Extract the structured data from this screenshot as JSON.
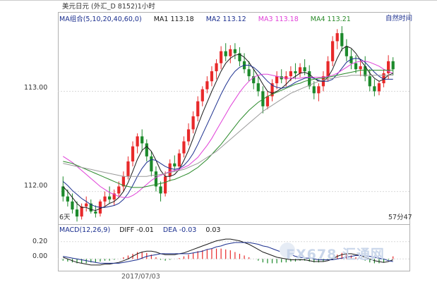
{
  "header": {
    "instrument": "美元日元 (外汇_D 8152)1小时",
    "mode_label": "自然时间"
  },
  "ma_legend": {
    "group": "MA组合(5,10,20,40,60,0)",
    "items": [
      {
        "label": "MA1 113.18",
        "color": "#1a1a1a"
      },
      {
        "label": "MA2 113.12",
        "color": "#1b2f8f"
      },
      {
        "label": "MA3 113.18",
        "color": "#e040d8"
      },
      {
        "label": "MA4 113.21",
        "color": "#2a8a2a"
      }
    ]
  },
  "price_axis": {
    "ticks": [
      "113.00",
      "112.00"
    ]
  },
  "time_labels": {
    "left": "6天",
    "right": "57分47"
  },
  "macd_legend": {
    "title": "MACD(12,26,9)",
    "diff": "DIFF -0.01",
    "dea": "DEA -0.03",
    "macd": "0.03"
  },
  "macd_axis": {
    "ticks": [
      "0.20",
      "0.00"
    ]
  },
  "date_label": "2017/07/03",
  "watermark": "FX678 汇通网",
  "colors": {
    "up": "#e8292a",
    "down": "#1c8a2b",
    "axis": "#b0b0b0",
    "grid": "#d9d9d9"
  },
  "chart_data": [
    {
      "type": "candlestick",
      "title": "美元日元 (外汇_D 8152)1小时",
      "ylim": [
        111.8,
        113.7
      ],
      "yticks": [
        113.0,
        112.0
      ],
      "ohlc": [
        [
          112.05,
          112.15,
          111.9,
          111.95
        ],
        [
          111.95,
          112.02,
          111.85,
          111.9
        ],
        [
          111.9,
          111.98,
          111.78,
          111.82
        ],
        [
          111.82,
          111.9,
          111.7,
          111.75
        ],
        [
          111.75,
          111.88,
          111.72,
          111.85
        ],
        [
          111.85,
          111.95,
          111.8,
          111.88
        ],
        [
          111.88,
          111.92,
          111.78,
          111.8
        ],
        [
          111.8,
          111.86,
          111.74,
          111.78
        ],
        [
          111.78,
          111.92,
          111.75,
          111.9
        ],
        [
          111.9,
          112.0,
          111.85,
          111.95
        ],
        [
          111.95,
          112.05,
          111.88,
          111.92
        ],
        [
          111.92,
          112.02,
          111.86,
          111.98
        ],
        [
          111.98,
          112.1,
          111.94,
          112.05
        ],
        [
          112.05,
          112.2,
          112.0,
          112.15
        ],
        [
          112.15,
          112.35,
          112.12,
          112.3
        ],
        [
          112.3,
          112.5,
          112.25,
          112.45
        ],
        [
          112.45,
          112.58,
          112.38,
          112.55
        ],
        [
          112.55,
          112.62,
          112.4,
          112.48
        ],
        [
          112.48,
          112.52,
          112.3,
          112.35
        ],
        [
          112.35,
          112.4,
          112.15,
          112.2
        ],
        [
          112.2,
          112.25,
          112.0,
          112.05
        ],
        [
          112.05,
          112.1,
          111.9,
          111.98
        ],
        [
          111.98,
          112.2,
          111.95,
          112.15
        ],
        [
          112.15,
          112.32,
          112.1,
          112.28
        ],
        [
          112.28,
          112.36,
          112.2,
          112.25
        ],
        [
          112.25,
          112.42,
          112.22,
          112.38
        ],
        [
          112.38,
          112.55,
          112.34,
          112.5
        ],
        [
          112.5,
          112.68,
          112.46,
          112.62
        ],
        [
          112.62,
          112.8,
          112.58,
          112.75
        ],
        [
          112.75,
          112.95,
          112.7,
          112.9
        ],
        [
          112.9,
          113.05,
          112.85,
          113.02
        ],
        [
          113.02,
          113.15,
          112.98,
          113.1
        ],
        [
          113.1,
          113.25,
          113.05,
          113.2
        ],
        [
          113.2,
          113.32,
          113.12,
          113.28
        ],
        [
          113.28,
          113.45,
          113.22,
          113.4
        ],
        [
          113.4,
          113.48,
          113.3,
          113.35
        ],
        [
          113.35,
          113.46,
          113.28,
          113.42
        ],
        [
          113.42,
          113.48,
          113.32,
          113.38
        ],
        [
          113.38,
          113.44,
          113.25,
          113.3
        ],
        [
          113.3,
          113.38,
          113.18,
          113.22
        ],
        [
          113.22,
          113.3,
          113.1,
          113.15
        ],
        [
          113.15,
          113.22,
          113.02,
          113.08
        ],
        [
          113.08,
          113.15,
          112.95,
          113.0
        ],
        [
          113.0,
          113.05,
          112.78,
          112.85
        ],
        [
          112.85,
          113.0,
          112.82,
          112.95
        ],
        [
          112.95,
          113.12,
          112.9,
          113.08
        ],
        [
          113.08,
          113.2,
          113.02,
          113.15
        ],
        [
          113.15,
          113.22,
          113.08,
          113.12
        ],
        [
          113.12,
          113.2,
          113.05,
          113.15
        ],
        [
          113.15,
          113.25,
          113.1,
          113.2
        ],
        [
          113.2,
          113.28,
          113.12,
          113.18
        ],
        [
          113.18,
          113.28,
          113.14,
          113.24
        ],
        [
          113.24,
          113.32,
          113.16,
          113.2
        ],
        [
          113.2,
          113.26,
          113.02,
          113.05
        ],
        [
          113.05,
          113.1,
          112.92,
          112.98
        ],
        [
          112.98,
          113.08,
          112.9,
          113.05
        ],
        [
          113.05,
          113.2,
          113.0,
          113.15
        ],
        [
          113.15,
          113.35,
          113.1,
          113.3
        ],
        [
          113.3,
          113.55,
          113.25,
          113.5
        ],
        [
          113.5,
          113.62,
          113.42,
          113.58
        ],
        [
          113.58,
          113.65,
          113.4,
          113.45
        ],
        [
          113.45,
          113.52,
          113.3,
          113.35
        ],
        [
          113.35,
          113.42,
          113.22,
          113.28
        ],
        [
          113.28,
          113.36,
          113.18,
          113.22
        ],
        [
          113.22,
          113.32,
          113.15,
          113.25
        ],
        [
          113.25,
          113.35,
          113.1,
          113.15
        ],
        [
          113.15,
          113.22,
          113.0,
          113.05
        ],
        [
          113.05,
          113.12,
          112.95,
          113.0
        ],
        [
          113.0,
          113.1,
          112.96,
          113.08
        ],
        [
          113.08,
          113.22,
          113.04,
          113.18
        ],
        [
          113.18,
          113.36,
          113.12,
          113.3
        ],
        [
          113.3,
          113.34,
          113.16,
          113.22
        ]
      ],
      "series": [
        {
          "name": "MA1",
          "color": "#1a1a1a",
          "values": [
            112.05,
            112.0,
            111.94,
            111.88,
            111.84,
            111.84,
            111.82,
            111.81,
            111.83,
            111.85,
            111.88,
            111.9,
            111.94,
            112.0,
            112.09,
            112.2,
            112.32,
            112.41,
            112.45,
            112.4,
            112.31,
            112.21,
            112.15,
            112.15,
            112.17,
            112.22,
            112.31,
            112.41,
            112.53,
            112.66,
            112.78,
            112.89,
            113.0,
            113.1,
            113.2,
            113.28,
            113.33,
            113.36,
            113.37,
            113.34,
            113.29,
            113.22,
            113.15,
            113.07,
            113.0,
            112.98,
            113.0,
            113.03,
            113.07,
            113.12,
            113.15,
            113.18,
            113.19,
            113.17,
            113.13,
            113.1,
            113.1,
            113.14,
            113.22,
            113.33,
            113.42,
            113.45,
            113.43,
            113.38,
            113.31,
            113.25,
            113.18,
            113.13,
            113.1,
            113.12,
            113.16,
            113.18
          ]
        },
        {
          "name": "MA2",
          "color": "#1b2f8f",
          "values": [
            112.1,
            112.06,
            112.01,
            111.97,
            111.93,
            111.9,
            111.87,
            111.85,
            111.84,
            111.84,
            111.85,
            111.86,
            111.88,
            111.92,
            111.98,
            112.06,
            112.15,
            112.23,
            112.29,
            112.32,
            112.31,
            112.28,
            112.25,
            112.23,
            112.22,
            112.23,
            112.26,
            112.31,
            112.38,
            112.47,
            112.57,
            112.67,
            112.77,
            112.87,
            112.97,
            113.06,
            113.14,
            113.2,
            113.24,
            113.26,
            113.26,
            113.24,
            113.2,
            113.15,
            113.1,
            113.06,
            113.04,
            113.03,
            113.04,
            113.06,
            113.09,
            113.11,
            113.13,
            113.14,
            113.13,
            113.11,
            113.1,
            113.1,
            113.12,
            113.17,
            113.23,
            113.29,
            113.32,
            113.33,
            113.32,
            113.29,
            113.24,
            113.19,
            113.15,
            113.12,
            113.12,
            113.12
          ]
        },
        {
          "name": "MA3",
          "color": "#e040d8",
          "values": [
            112.35,
            112.32,
            112.29,
            112.25,
            112.21,
            112.17,
            112.13,
            112.09,
            112.05,
            112.02,
            111.99,
            111.97,
            111.95,
            111.94,
            111.94,
            111.96,
            111.99,
            112.03,
            112.07,
            112.11,
            112.14,
            112.16,
            112.18,
            112.2,
            112.21,
            112.22,
            112.24,
            112.26,
            112.3,
            112.34,
            112.4,
            112.46,
            112.53,
            112.61,
            112.69,
            112.77,
            112.85,
            112.92,
            112.99,
            113.05,
            113.1,
            113.14,
            113.16,
            113.17,
            113.17,
            113.16,
            113.15,
            113.14,
            113.13,
            113.13,
            113.13,
            113.13,
            113.14,
            113.14,
            113.14,
            113.14,
            113.14,
            113.15,
            113.16,
            113.18,
            113.21,
            113.24,
            113.27,
            113.29,
            113.3,
            113.3,
            113.29,
            113.27,
            113.25,
            113.22,
            113.2,
            113.18
          ]
        },
        {
          "name": "MA4",
          "color": "#2a8a2a",
          "values": [
            112.3,
            112.29,
            112.28,
            112.26,
            112.24,
            112.22,
            112.2,
            112.18,
            112.16,
            112.14,
            112.12,
            112.1,
            112.08,
            112.06,
            112.05,
            112.04,
            112.04,
            112.04,
            112.05,
            112.06,
            112.07,
            112.08,
            112.09,
            112.11,
            112.12,
            112.14,
            112.16,
            112.18,
            112.21,
            112.24,
            112.28,
            112.32,
            112.37,
            112.42,
            112.47,
            112.53,
            112.59,
            112.65,
            112.71,
            112.76,
            112.81,
            112.85,
            112.89,
            112.92,
            112.95,
            112.97,
            112.99,
            113.01,
            113.03,
            113.05,
            113.07,
            113.08,
            113.1,
            113.11,
            113.12,
            113.13,
            113.13,
            113.14,
            113.15,
            113.16,
            113.17,
            113.18,
            113.19,
            113.2,
            113.21,
            113.21,
            113.21,
            113.21,
            113.21,
            113.21,
            113.21,
            113.21
          ]
        },
        {
          "name": "MA60",
          "color": "#9a9a9a",
          "values": [
            112.28,
            112.27,
            112.26,
            112.25,
            112.24,
            112.23,
            112.22,
            112.21,
            112.2,
            112.19,
            112.18,
            112.17,
            112.16,
            112.15,
            112.15,
            112.15,
            112.15,
            112.15,
            112.15,
            112.16,
            112.16,
            112.17,
            112.18,
            112.19,
            112.2,
            112.21,
            112.22,
            112.24,
            112.26,
            112.28,
            112.31,
            112.34,
            112.37,
            112.4,
            112.44,
            112.48,
            112.52,
            112.56,
            112.6,
            112.64,
            112.68,
            112.72,
            112.76,
            112.8,
            112.83,
            112.86,
            112.89,
            112.92,
            112.95,
            112.98,
            113.0,
            113.02,
            113.04,
            113.06,
            113.08,
            113.1,
            113.11,
            113.12,
            113.13,
            113.14,
            113.15,
            113.15,
            113.16,
            113.16,
            113.16,
            113.16,
            113.16,
            113.16,
            113.16,
            113.16,
            113.16,
            113.16
          ]
        }
      ]
    },
    {
      "type": "macd",
      "title": "MACD(12,26,9)",
      "ylim": [
        -0.12,
        0.28
      ],
      "yticks": [
        0.2,
        0.0
      ],
      "histogram": [
        -0.02,
        -0.03,
        -0.04,
        -0.05,
        -0.05,
        -0.05,
        -0.04,
        -0.04,
        -0.03,
        -0.02,
        -0.02,
        -0.01,
        0.0,
        0.02,
        0.04,
        0.06,
        0.08,
        0.08,
        0.07,
        0.05,
        0.02,
        -0.01,
        -0.02,
        -0.01,
        0.0,
        0.01,
        0.03,
        0.05,
        0.07,
        0.09,
        0.1,
        0.11,
        0.12,
        0.12,
        0.12,
        0.11,
        0.1,
        0.08,
        0.06,
        0.04,
        0.02,
        0.0,
        -0.02,
        -0.04,
        -0.05,
        -0.05,
        -0.05,
        -0.04,
        -0.04,
        -0.03,
        -0.03,
        -0.02,
        -0.02,
        -0.03,
        -0.04,
        -0.04,
        -0.03,
        -0.01,
        0.02,
        0.05,
        0.07,
        0.06,
        0.04,
        0.02,
        0.0,
        -0.02,
        -0.04,
        -0.05,
        -0.05,
        -0.04,
        -0.01,
        0.03
      ],
      "series": [
        {
          "name": "DIFF",
          "color": "#1a1a1a",
          "values": [
            0.02,
            0.0,
            -0.02,
            -0.04,
            -0.05,
            -0.06,
            -0.07,
            -0.07,
            -0.07,
            -0.06,
            -0.06,
            -0.05,
            -0.04,
            -0.02,
            0.0,
            0.03,
            0.06,
            0.08,
            0.09,
            0.09,
            0.08,
            0.06,
            0.05,
            0.05,
            0.05,
            0.06,
            0.07,
            0.09,
            0.11,
            0.13,
            0.15,
            0.17,
            0.19,
            0.21,
            0.22,
            0.23,
            0.23,
            0.22,
            0.21,
            0.19,
            0.17,
            0.14,
            0.11,
            0.08,
            0.06,
            0.04,
            0.02,
            0.01,
            0.0,
            -0.01,
            -0.01,
            -0.01,
            -0.01,
            -0.02,
            -0.03,
            -0.03,
            -0.03,
            -0.02,
            0.0,
            0.03,
            0.05,
            0.06,
            0.06,
            0.05,
            0.04,
            0.02,
            0.0,
            -0.02,
            -0.03,
            -0.04,
            -0.03,
            -0.01
          ]
        },
        {
          "name": "DEA",
          "color": "#1b2f8f",
          "values": [
            0.03,
            0.02,
            0.01,
            0.0,
            -0.01,
            -0.02,
            -0.03,
            -0.04,
            -0.05,
            -0.05,
            -0.05,
            -0.05,
            -0.05,
            -0.04,
            -0.03,
            -0.02,
            -0.01,
            0.01,
            0.03,
            0.04,
            0.05,
            0.06,
            0.06,
            0.06,
            0.06,
            0.06,
            0.06,
            0.06,
            0.07,
            0.08,
            0.09,
            0.11,
            0.12,
            0.14,
            0.15,
            0.17,
            0.18,
            0.19,
            0.19,
            0.19,
            0.19,
            0.18,
            0.17,
            0.15,
            0.14,
            0.12,
            0.1,
            0.08,
            0.06,
            0.05,
            0.03,
            0.02,
            0.01,
            0.01,
            0.0,
            -0.01,
            -0.01,
            -0.01,
            -0.01,
            0.0,
            0.01,
            0.02,
            0.03,
            0.04,
            0.04,
            0.04,
            0.03,
            0.02,
            0.01,
            0.0,
            -0.02,
            -0.03
          ]
        }
      ]
    }
  ]
}
